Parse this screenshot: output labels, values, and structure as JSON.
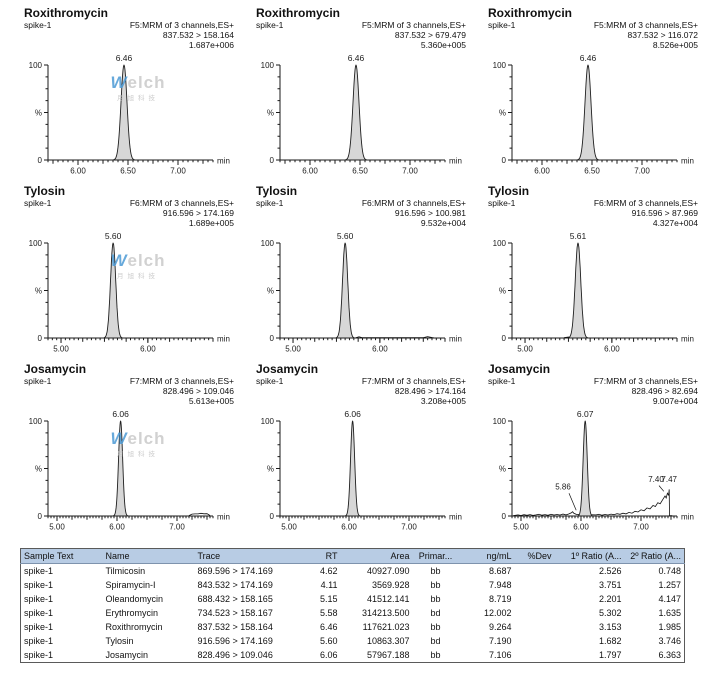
{
  "colors": {
    "peak_fill": "#d7d7d7",
    "peak_stroke": "#1f1f1f",
    "axis": "#1a1a1a",
    "trace": "#111111",
    "table_header_bg": "#b8cce4",
    "table_border": "#5a5a5a",
    "watermark_blue": "#4d9bd5",
    "watermark_gray": "#c9c9c9"
  },
  "axis_labels": {
    "y_top": "100",
    "y_mid": "%",
    "y_bottom": "0",
    "x_unit": "min"
  },
  "watermark": {
    "brand_first": "W",
    "brand_rest": "elch",
    "subtext": "月旭科技"
  },
  "chart_data": {
    "type": "area",
    "description": "3x3 grid of MRM chromatograms; x = retention time (min), y = relative intensity (%), each peak normalized to 100%",
    "panels": [
      {
        "title": "Roxithromycin",
        "sample": "spike-1",
        "channel": "F5:MRM of 3 channels,ES+",
        "transition": "837.532 > 158.164",
        "intensity": "1.687e+006",
        "rt_label": "6.46",
        "peak_rt": 6.46,
        "peak_height_pct": 100,
        "sigma": 0.03,
        "xmin": 5.7,
        "xmax": 7.35,
        "xticks": [
          "6.00",
          "6.50",
          "7.00"
        ],
        "watermark": true
      },
      {
        "title": "Roxithromycin",
        "sample": "spike-1",
        "channel": "F5:MRM of 3 channels,ES+",
        "transition": "837.532 > 679.479",
        "intensity": "5.360e+005",
        "rt_label": "6.46",
        "peak_rt": 6.46,
        "peak_height_pct": 100,
        "sigma": 0.03,
        "xmin": 5.7,
        "xmax": 7.35,
        "xticks": [
          "6.00",
          "6.50",
          "7.00"
        ],
        "watermark": false
      },
      {
        "title": "Roxithromycin",
        "sample": "spike-1",
        "channel": "F5:MRM of 3 channels,ES+",
        "transition": "837.532 > 116.072",
        "intensity": "8.526e+005",
        "rt_label": "6.46",
        "peak_rt": 6.46,
        "peak_height_pct": 100,
        "sigma": 0.03,
        "xmin": 5.7,
        "xmax": 7.35,
        "xticks": [
          "6.00",
          "6.50",
          "7.00"
        ],
        "watermark": false
      },
      {
        "title": "Tylosin",
        "sample": "spike-1",
        "channel": "F6:MRM of 3 channels,ES+",
        "transition": "916.596 > 174.169",
        "intensity": "1.689e+005",
        "rt_label": "5.60",
        "peak_rt": 5.6,
        "peak_height_pct": 100,
        "sigma": 0.03,
        "xmin": 4.85,
        "xmax": 6.75,
        "xticks": [
          "5.00",
          "6.00"
        ],
        "watermark": true
      },
      {
        "title": "Tylosin",
        "sample": "spike-1",
        "channel": "F6:MRM of 3 channels,ES+",
        "transition": "916.596 > 100.981",
        "intensity": "9.532e+004",
        "rt_label": "5.60",
        "peak_rt": 5.6,
        "peak_height_pct": 100,
        "sigma": 0.03,
        "xmin": 4.85,
        "xmax": 6.75,
        "xticks": [
          "5.00",
          "6.00"
        ],
        "watermark": false,
        "tail": [
          [
            5.72,
            0.3
          ],
          [
            5.76,
            1.3
          ],
          [
            5.8,
            0.3
          ],
          [
            6.5,
            0.4
          ],
          [
            6.55,
            1.5
          ],
          [
            6.6,
            0.5
          ],
          [
            6.62,
            0.2
          ]
        ]
      },
      {
        "title": "Tylosin",
        "sample": "spike-1",
        "channel": "F6:MRM of 3 channels,ES+",
        "transition": "916.596 > 87.969",
        "intensity": "4.327e+004",
        "rt_label": "5.61",
        "peak_rt": 5.61,
        "peak_height_pct": 100,
        "sigma": 0.032,
        "xmin": 4.85,
        "xmax": 6.75,
        "xticks": [
          "5.00",
          "6.00"
        ],
        "watermark": false,
        "tail": [
          [
            5.45,
            0.3
          ],
          [
            5.5,
            1.0
          ],
          [
            5.55,
            0.4
          ]
        ]
      },
      {
        "title": "Josamycin",
        "sample": "spike-1",
        "channel": "F7:MRM of 3 channels,ES+",
        "transition": "828.496 > 109.046",
        "intensity": "5.613e+005",
        "rt_label": "6.06",
        "peak_rt": 6.06,
        "peak_height_pct": 100,
        "sigma": 0.034,
        "xmin": 4.85,
        "xmax": 7.6,
        "xticks": [
          "5.00",
          "6.00",
          "7.00"
        ],
        "watermark": true,
        "tail": [
          [
            7.2,
            0.4
          ],
          [
            7.25,
            2.0
          ],
          [
            7.3,
            2.2
          ],
          [
            7.35,
            2.2
          ],
          [
            7.4,
            2.8
          ],
          [
            7.45,
            2.3
          ],
          [
            7.5,
            2.4
          ],
          [
            7.55,
            0.5
          ]
        ]
      },
      {
        "title": "Josamycin",
        "sample": "spike-1",
        "channel": "F7:MRM of 3 channels,ES+",
        "transition": "828.496 > 174.164",
        "intensity": "3.208e+005",
        "rt_label": "6.06",
        "peak_rt": 6.06,
        "peak_height_pct": 100,
        "sigma": 0.034,
        "xmin": 4.85,
        "xmax": 7.6,
        "xticks": [
          "5.00",
          "6.00",
          "7.00"
        ],
        "watermark": false
      },
      {
        "title": "Josamycin",
        "sample": "spike-1",
        "channel": "F7:MRM of 3 channels,ES+",
        "transition": "828.496 > 82.694",
        "intensity": "9.007e+004",
        "rt_label": "6.07",
        "peak_rt": 6.07,
        "peak_height_pct": 100,
        "sigma": 0.034,
        "xmin": 4.85,
        "xmax": 7.6,
        "xticks": [
          "5.00",
          "6.00",
          "7.00"
        ],
        "watermark": false,
        "tail": [
          [
            4.87,
            0.4
          ],
          [
            4.95,
            1.2
          ],
          [
            5.0,
            0.5
          ],
          [
            5.05,
            1.4
          ],
          [
            5.1,
            0.7
          ],
          [
            5.15,
            1.5
          ],
          [
            5.2,
            0.6
          ],
          [
            5.25,
            1.2
          ],
          [
            5.3,
            1.8
          ],
          [
            5.35,
            0.8
          ],
          [
            5.4,
            1.5
          ],
          [
            5.45,
            0.7
          ],
          [
            5.5,
            1.8
          ],
          [
            5.55,
            1.0
          ],
          [
            5.6,
            1.6
          ],
          [
            5.65,
            1.0
          ],
          [
            5.7,
            2.0
          ],
          [
            5.75,
            1.2
          ],
          [
            5.8,
            2.2
          ],
          [
            5.84,
            3.4
          ],
          [
            5.86,
            4.5
          ],
          [
            5.88,
            2.8
          ],
          [
            5.92,
            1.8
          ],
          [
            6.25,
            1.2
          ],
          [
            6.3,
            1.8
          ],
          [
            6.35,
            0.8
          ],
          [
            6.4,
            1.6
          ],
          [
            6.45,
            1.0
          ],
          [
            6.5,
            2.0
          ],
          [
            6.55,
            1.4
          ],
          [
            6.6,
            2.4
          ],
          [
            6.65,
            1.8
          ],
          [
            6.7,
            3.0
          ],
          [
            6.75,
            2.2
          ],
          [
            6.8,
            3.8
          ],
          [
            6.85,
            3.0
          ],
          [
            6.9,
            5.0
          ],
          [
            6.95,
            4.2
          ],
          [
            7.0,
            6.5
          ],
          [
            7.05,
            5.5
          ],
          [
            7.1,
            8.5
          ],
          [
            7.15,
            7.5
          ],
          [
            7.2,
            11.0
          ],
          [
            7.24,
            10.0
          ],
          [
            7.28,
            14.0
          ],
          [
            7.32,
            13.0
          ],
          [
            7.36,
            17.0
          ],
          [
            7.4,
            21.0
          ],
          [
            7.42,
            19.0
          ],
          [
            7.44,
            24.0
          ],
          [
            7.46,
            22.0
          ],
          [
            7.47,
            28.0
          ],
          [
            7.475,
            0.3
          ],
          [
            7.52,
            0.4
          ]
        ],
        "annotations": [
          {
            "text": "5.86",
            "x": 5.7,
            "y": 28,
            "leader": [
              [
                5.8,
                24
              ],
              [
                5.92,
                6
              ]
            ]
          },
          {
            "text": "7.40",
            "x": 7.25,
            "y": 36,
            "leader": [
              [
                7.3,
                32
              ],
              [
                7.38,
                26
              ]
            ]
          },
          {
            "text": "7.47",
            "x": 7.47,
            "y": 36
          }
        ]
      }
    ],
    "table": {
      "headers": [
        "Sample Text",
        "Name",
        "Trace",
        "RT",
        "Area",
        "Primar...",
        "ng/mL",
        "%Dev",
        "1º Ratio (A...",
        "2º Ratio (A..."
      ],
      "rows": [
        [
          "spike-1",
          "Tilmicosin",
          "869.596 > 174.169",
          "4.62",
          "40927.090",
          "bb",
          "8.687",
          "",
          "2.526",
          "0.748"
        ],
        [
          "spike-1",
          "Spiramycin-I",
          "843.532 > 174.169",
          "4.11",
          "3569.928",
          "bb",
          "7.948",
          "",
          "3.751",
          "1.257"
        ],
        [
          "spike-1",
          "Oleandomycin",
          "688.432 > 158.165",
          "5.15",
          "41512.141",
          "bb",
          "8.719",
          "",
          "2.201",
          "4.147"
        ],
        [
          "spike-1",
          "Erythromycin",
          "734.523 > 158.167",
          "5.58",
          "314213.500",
          "bd",
          "12.002",
          "",
          "5.302",
          "1.635"
        ],
        [
          "spike-1",
          "Roxithromycin",
          "837.532 > 158.164",
          "6.46",
          "117621.023",
          "bb",
          "9.264",
          "",
          "3.153",
          "1.985"
        ],
        [
          "spike-1",
          "Tylosin",
          "916.596 > 174.169",
          "5.60",
          "10863.307",
          "bd",
          "7.190",
          "",
          "1.682",
          "3.746"
        ],
        [
          "spike-1",
          "Josamycin",
          "828.496 > 109.046",
          "6.06",
          "57967.188",
          "bb",
          "7.106",
          "",
          "1.797",
          "6.363"
        ]
      ],
      "col_align": [
        "l",
        "l",
        "l",
        "r",
        "r",
        "c",
        "r",
        "r",
        "r",
        "r"
      ]
    }
  }
}
